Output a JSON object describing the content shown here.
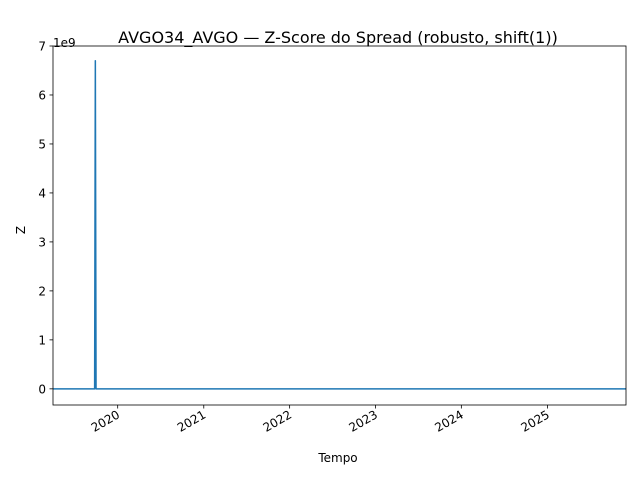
{
  "chart_data": {
    "type": "line",
    "title": "AVGO34_AVGO — Z-Score do Spread (robusto, shift(1))",
    "xlabel": "Tempo",
    "ylabel": "Z",
    "y_offset_label": "1e9",
    "y_scale": 1000000000,
    "xlim": [
      "2019-04-01",
      "2025-12-01"
    ],
    "ylim": [
      -0.33,
      7.0
    ],
    "y_ticks": [
      0,
      1,
      2,
      3,
      4,
      5,
      6,
      7
    ],
    "x_ticks": [
      {
        "date": "2020-01-01",
        "label": "2020"
      },
      {
        "date": "2021-01-01",
        "label": "2021"
      },
      {
        "date": "2022-01-01",
        "label": "2022"
      },
      {
        "date": "2023-01-01",
        "label": "2023"
      },
      {
        "date": "2024-01-01",
        "label": "2024"
      },
      {
        "date": "2025-01-01",
        "label": "2025"
      }
    ],
    "grid": false,
    "color": "#1f77b4",
    "series": [
      {
        "x": [
          "2019-04-01",
          "2019-09-20",
          "2019-09-25",
          "2019-09-28",
          "2019-10-01",
          "2019-10-04",
          "2025-12-01"
        ],
        "values": [
          0,
          0,
          0,
          6.7,
          0,
          0,
          0
        ]
      }
    ]
  }
}
